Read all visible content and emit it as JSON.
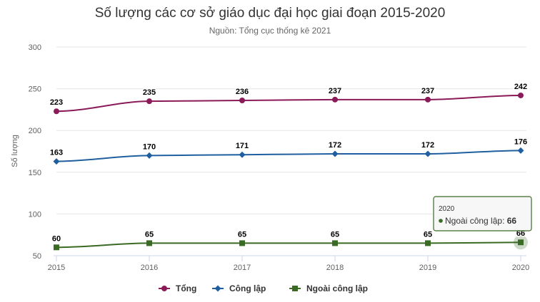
{
  "chart_data": {
    "type": "line",
    "title": "Số lượng các cơ sở giáo dục đại học giai đoạn 2015-2020",
    "subtitle": "Nguồn: Tổng cục thống kê 2021",
    "ylabel": "Số lượng",
    "xlabel": "",
    "categories": [
      "2015",
      "2016",
      "2017",
      "2018",
      "2019",
      "2020"
    ],
    "ylim": [
      50,
      300
    ],
    "yticks": [
      50,
      100,
      150,
      200,
      250,
      300
    ],
    "grid": true,
    "legend_position": "bottom",
    "series": [
      {
        "name": "Tổng",
        "values": [
          223,
          235,
          236,
          237,
          237,
          242
        ],
        "color": "#8b1a58",
        "marker": "circle"
      },
      {
        "name": "Công lập",
        "values": [
          163,
          170,
          171,
          172,
          172,
          176
        ],
        "color": "#1f5fa0",
        "marker": "diamond"
      },
      {
        "name": "Ngoài công lập",
        "values": [
          60,
          65,
          65,
          65,
          65,
          66
        ],
        "color": "#3a6b24",
        "marker": "square"
      }
    ],
    "tooltip": {
      "category": "2020",
      "series_name": "Ngoài công lập",
      "value_text": "66",
      "separator": ": "
    }
  }
}
